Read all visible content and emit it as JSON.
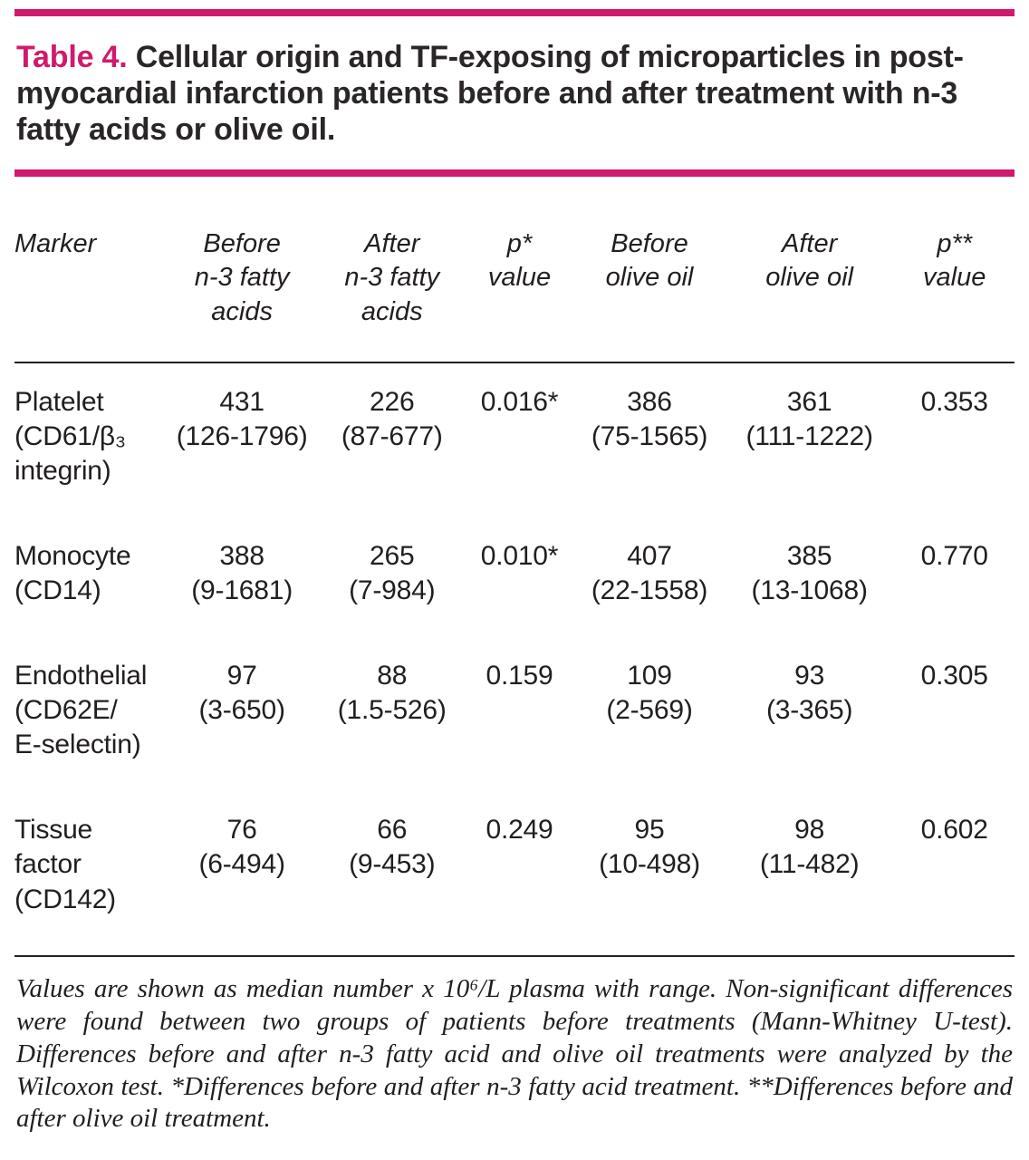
{
  "accent_color": "#d01a6b",
  "caption": {
    "label": "Table 4.",
    "text": " Cellular origin and TF-exposing of microparticles in post-myocardial infarction patients before and after treatment with n-3 fatty acids or olive oil."
  },
  "table": {
    "headers": [
      "Marker",
      "Before\nn-3 fatty\nacids",
      "After\nn-3 fatty\nacids",
      "p*\nvalue",
      "Before\nolive oil",
      "After\nolive oil",
      "p**\nvalue"
    ],
    "rows": [
      {
        "marker": "Platelet\n(CD61/β₃\nintegrin)",
        "cells": [
          "431\n(126-1796)",
          "226\n(87-677)",
          "0.016*",
          "386\n(75-1565)",
          "361\n(111-1222)",
          "0.353"
        ]
      },
      {
        "marker": "Monocyte\n(CD14)",
        "cells": [
          "388\n(9-1681)",
          "265\n(7-984)",
          "0.010*",
          "407\n(22-1558)",
          "385\n(13-1068)",
          "0.770"
        ]
      },
      {
        "marker": "Endothelial\n(CD62E/\nE-selectin)",
        "cells": [
          "97\n(3-650)",
          "88\n(1.5-526)",
          "0.159",
          "109\n(2-569)",
          "93\n(3-365)",
          "0.305"
        ]
      },
      {
        "marker": "Tissue\nfactor\n(CD142)",
        "cells": [
          "76\n(6-494)",
          "66\n(9-453)",
          "0.249",
          "95\n(10-498)",
          "98\n(11-482)",
          "0.602"
        ]
      }
    ]
  },
  "footnote": "Values are shown as median number x 10⁶/L plasma with range. Non-significant differences were found between two groups of patients before treatments (Mann-Whitney U-test). Differences before and after n-3 fatty acid and olive oil treatments were  analyzed by the Wilcoxon test.  *Differences  before and after n-3 fatty acid treatment. **Differences before and after olive oil treatment."
}
